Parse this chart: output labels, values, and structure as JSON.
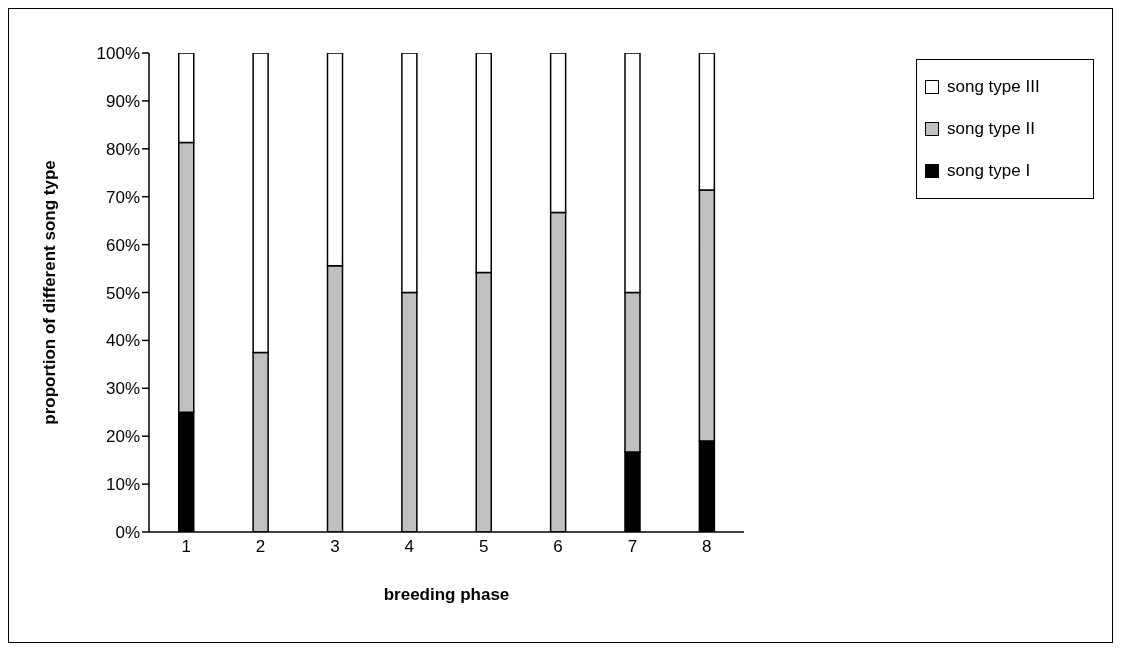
{
  "chart_data": {
    "type": "bar",
    "stacked": true,
    "xlabel": "breeding phase",
    "ylabel": "proportion of different song type",
    "categories": [
      "1",
      "2",
      "3",
      "4",
      "5",
      "6",
      "7",
      "8"
    ],
    "series": [
      {
        "name": "song type I",
        "color": "#000000",
        "values": [
          25,
          0,
          0,
          0,
          0,
          0,
          16.7,
          19
        ]
      },
      {
        "name": "song type II",
        "color": "#c0c0c0",
        "values": [
          56.3,
          37.5,
          55.6,
          50,
          54.2,
          66.7,
          33.3,
          52.4
        ]
      },
      {
        "name": "song type III",
        "color": "#ffffff",
        "values": [
          18.7,
          62.5,
          44.4,
          50,
          45.8,
          33.3,
          50,
          28.6
        ]
      }
    ],
    "ylim": [
      0,
      100
    ],
    "yticks": [
      {
        "value": 0,
        "label": "0%"
      },
      {
        "value": 10,
        "label": "10%"
      },
      {
        "value": 20,
        "label": "20%"
      },
      {
        "value": 30,
        "label": "30%"
      },
      {
        "value": 40,
        "label": "40%"
      },
      {
        "value": 50,
        "label": "50%"
      },
      {
        "value": 60,
        "label": "60%"
      },
      {
        "value": 70,
        "label": "70%"
      },
      {
        "value": 80,
        "label": "80%"
      },
      {
        "value": 90,
        "label": "90%"
      },
      {
        "value": 100,
        "label": "100%"
      }
    ],
    "grid": false,
    "legend": "right"
  }
}
